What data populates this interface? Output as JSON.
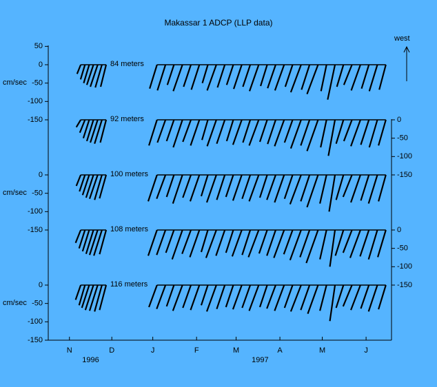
{
  "chart_data": {
    "type": "stick",
    "title": "Makassar 1 ADCP (LLP data)",
    "ylabel": "cm/sec",
    "direction_label": "west",
    "color": "#000000",
    "background": "#55b4ff",
    "xlim": [
      0,
      243
    ],
    "xticks": [
      {
        "value": 15,
        "label": "N"
      },
      {
        "value": 45,
        "label": "D"
      },
      {
        "value": 74,
        "label": "J"
      },
      {
        "value": 105,
        "label": "F"
      },
      {
        "value": 133,
        "label": "M"
      },
      {
        "value": 164,
        "label": "A"
      },
      {
        "value": 194,
        "label": "M"
      },
      {
        "value": 225,
        "label": "J"
      }
    ],
    "year_labels": [
      {
        "value": 30,
        "label": "1996"
      },
      {
        "value": 150,
        "label": "1997"
      }
    ],
    "x": [
      23,
      26,
      29,
      32,
      35,
      38,
      41,
      77,
      83,
      89,
      95,
      101,
      107,
      113,
      119,
      125,
      131,
      137,
      143,
      149,
      155,
      161,
      167,
      173,
      179,
      185,
      191,
      197,
      203,
      209,
      215,
      221,
      227,
      233,
      239
    ],
    "series": [
      {
        "name": "84 meters",
        "axis_side": "left",
        "ylim": [
          -150,
          50
        ],
        "yticks": [
          50,
          0,
          -50,
          -100,
          -150
        ],
        "values": [
          -25,
          -40,
          -50,
          -55,
          -60,
          -62,
          -60,
          -65,
          -70,
          -55,
          -72,
          -60,
          -68,
          -50,
          -70,
          -62,
          -55,
          -66,
          -60,
          -72,
          -58,
          -64,
          -70,
          -60,
          -75,
          -68,
          -80,
          -72,
          -95,
          -60,
          -55,
          -70,
          -65,
          -72,
          -68
        ],
        "u": [
          -10,
          -12,
          -15,
          -18,
          -20,
          -18,
          -15,
          -20,
          -22,
          -18,
          -25,
          -20,
          -22,
          -15,
          -25,
          -20,
          -18,
          -22,
          -20,
          -25,
          -18,
          -22,
          -25,
          -20,
          -28,
          -22,
          -30,
          -15,
          -20,
          -18,
          -22,
          -25,
          -20,
          -22,
          -18
        ]
      },
      {
        "name": "92 meters",
        "axis_side": "right",
        "ylim": [
          -150,
          0
        ],
        "yticks": [
          0,
          -50,
          -100,
          -150
        ],
        "values": [
          -20,
          -35,
          -50,
          -58,
          -62,
          -65,
          -62,
          -70,
          -62,
          -58,
          -75,
          -60,
          -70,
          -55,
          -72,
          -65,
          -58,
          -68,
          -62,
          -70,
          -60,
          -66,
          -72,
          -62,
          -78,
          -70,
          -85,
          -75,
          -98,
          -65,
          -58,
          -72,
          -68,
          -75,
          -70
        ],
        "u": [
          -12,
          -14,
          -16,
          -18,
          -20,
          -20,
          -16,
          -22,
          -22,
          -20,
          -25,
          -22,
          -24,
          -16,
          -25,
          -22,
          -18,
          -24,
          -20,
          -26,
          -20,
          -22,
          -26,
          -22,
          -28,
          -24,
          -30,
          -16,
          -18,
          -20,
          -22,
          -26,
          -22,
          -22,
          -20
        ]
      },
      {
        "name": "100 meters",
        "axis_side": "left",
        "ylim": [
          -150,
          0
        ],
        "yticks": [
          0,
          -50,
          -100,
          -150
        ],
        "values": [
          -30,
          -45,
          -55,
          -62,
          -65,
          -68,
          -64,
          -72,
          -65,
          -60,
          -78,
          -62,
          -72,
          -58,
          -75,
          -68,
          -60,
          -70,
          -65,
          -72,
          -62,
          -68,
          -75,
          -65,
          -80,
          -72,
          -88,
          -78,
          -100,
          -68,
          -60,
          -75,
          -70,
          -78,
          -72
        ],
        "u": [
          -12,
          -15,
          -18,
          -20,
          -22,
          -20,
          -18,
          -24,
          -24,
          -20,
          -26,
          -22,
          -25,
          -18,
          -26,
          -22,
          -20,
          -24,
          -22,
          -26,
          -20,
          -24,
          -26,
          -22,
          -30,
          -24,
          -30,
          -18,
          -16,
          -20,
          -24,
          -26,
          -22,
          -24,
          -20
        ]
      },
      {
        "name": "108 meters",
        "axis_side": "right",
        "ylim": [
          -150,
          0
        ],
        "yticks": [
          0,
          -50,
          -100,
          -150
        ],
        "values": [
          -35,
          -50,
          -58,
          -65,
          -68,
          -70,
          -66,
          -70,
          -68,
          -62,
          -80,
          -65,
          -74,
          -60,
          -76,
          -70,
          -62,
          -72,
          -68,
          -74,
          -64,
          -70,
          -76,
          -66,
          -82,
          -74,
          -90,
          -80,
          -100,
          -70,
          -62,
          -76,
          -72,
          -80,
          -74
        ],
        "u": [
          -14,
          -16,
          -18,
          -20,
          -22,
          -22,
          -18,
          -24,
          -24,
          -22,
          -28,
          -24,
          -26,
          -18,
          -28,
          -24,
          -20,
          -26,
          -22,
          -28,
          -22,
          -24,
          -28,
          -24,
          -30,
          -26,
          -32,
          -18,
          -14,
          -22,
          -24,
          -28,
          -24,
          -24,
          -22
        ]
      },
      {
        "name": "116 meters",
        "axis_side": "left",
        "ylim": [
          -150,
          0
        ],
        "yticks": [
          0,
          -50,
          -100,
          -150
        ],
        "values": [
          -40,
          -55,
          -62,
          -68,
          -70,
          -72,
          -68,
          -60,
          -65,
          -58,
          -70,
          -62,
          -68,
          -55,
          -72,
          -65,
          -60,
          -66,
          -62,
          -70,
          -60,
          -64,
          -70,
          -62,
          -72,
          -68,
          -78,
          -70,
          -98,
          -62,
          -58,
          -68,
          -64,
          -72,
          -66
        ],
        "u": [
          -14,
          -16,
          -20,
          -22,
          -22,
          -20,
          -18,
          -22,
          -24,
          -20,
          -26,
          -22,
          -24,
          -18,
          -26,
          -22,
          -20,
          -24,
          -22,
          -26,
          -20,
          -24,
          -26,
          -22,
          -28,
          -24,
          -28,
          -18,
          -14,
          -20,
          -24,
          -26,
          -22,
          -24,
          -20
        ]
      }
    ]
  }
}
